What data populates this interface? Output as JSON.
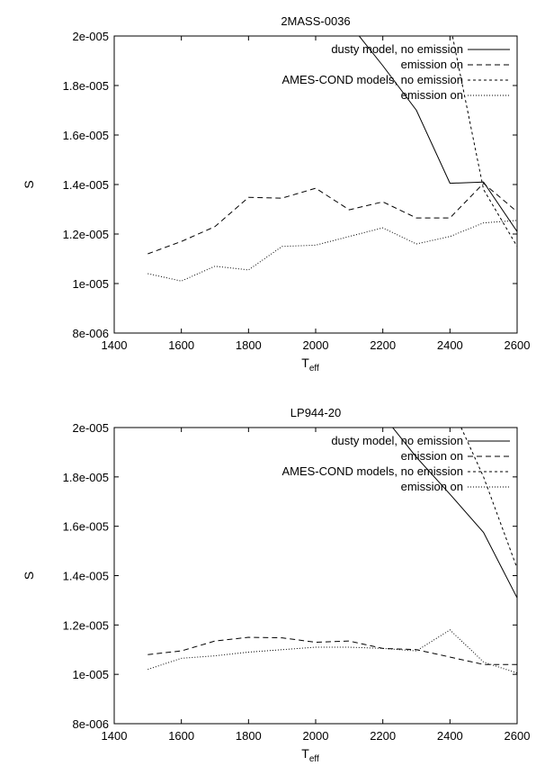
{
  "chart_data": [
    {
      "type": "line",
      "title": "2MASS-0036",
      "xlabel": "T",
      "xlabel_sub": "eff",
      "ylabel": "S",
      "xlim": [
        1400,
        2600
      ],
      "ylim": [
        8e-06,
        2e-05
      ],
      "x_ticks": [
        "1400",
        "1600",
        "1800",
        "2000",
        "2200",
        "2400",
        "2600"
      ],
      "y_ticks": [
        "8e-006",
        "1e-005",
        "1.2e-005",
        "1.4e-005",
        "1.6e-005",
        "1.8e-005",
        "2e-005"
      ],
      "grid": false,
      "legend_position": "top-right",
      "x": [
        1500,
        1600,
        1700,
        1800,
        1900,
        2000,
        2100,
        2200,
        2300,
        2400,
        2500,
        2600
      ],
      "series": [
        {
          "name": "dusty model, no emission",
          "style": "solid",
          "values": [
            null,
            null,
            null,
            null,
            null,
            2.16e-05,
            2.05e-05,
            1.88e-05,
            1.7e-05,
            1.405e-05,
            1.41e-05,
            1.21e-05
          ]
        },
        {
          "name": "emission on",
          "style": "dashed",
          "values": [
            1.12e-05,
            1.17e-05,
            1.23e-05,
            1.348e-05,
            1.345e-05,
            1.385e-05,
            1.298e-05,
            1.33e-05,
            1.265e-05,
            1.265e-05,
            1.405e-05,
            1.29e-05
          ]
        },
        {
          "name": "AMES-COND models, no emission",
          "style": "short-dashed",
          "values": [
            null,
            null,
            null,
            null,
            null,
            null,
            null,
            null,
            2.5e-05,
            2.05e-05,
            1.38e-05,
            1.15e-05
          ]
        },
        {
          "name": "emission on",
          "style": "dotted",
          "values": [
            1.04e-05,
            1.01e-05,
            1.07e-05,
            1.055e-05,
            1.15e-05,
            1.155e-05,
            1.19e-05,
            1.225e-05,
            1.16e-05,
            1.19e-05,
            1.245e-05,
            1.255e-05
          ]
        }
      ]
    },
    {
      "type": "line",
      "title": "LP944-20",
      "xlabel": "T",
      "xlabel_sub": "eff",
      "ylabel": "S",
      "xlim": [
        1400,
        2600
      ],
      "ylim": [
        8e-06,
        2e-05
      ],
      "x_ticks": [
        "1400",
        "1600",
        "1800",
        "2000",
        "2200",
        "2400",
        "2600"
      ],
      "y_ticks": [
        "8e-006",
        "1e-005",
        "1.2e-005",
        "1.4e-005",
        "1.6e-005",
        "1.8e-005",
        "2e-005"
      ],
      "grid": false,
      "legend_position": "top-right",
      "x": [
        1500,
        1600,
        1700,
        1800,
        1900,
        2000,
        2100,
        2200,
        2300,
        2400,
        2500,
        2600
      ],
      "series": [
        {
          "name": "dusty model, no emission",
          "style": "solid",
          "values": [
            null,
            null,
            null,
            null,
            null,
            null,
            null,
            2.05e-05,
            1.88e-05,
            1.73e-05,
            1.575e-05,
            1.31e-05
          ]
        },
        {
          "name": "emission on",
          "style": "dashed",
          "values": [
            1.08e-05,
            1.095e-05,
            1.135e-05,
            1.15e-05,
            1.148e-05,
            1.13e-05,
            1.135e-05,
            1.105e-05,
            1.1e-05,
            1.07e-05,
            1.04e-05,
            1.04e-05
          ]
        },
        {
          "name": "AMES-COND models, no emission",
          "style": "short-dashed",
          "values": [
            null,
            null,
            null,
            null,
            null,
            null,
            null,
            null,
            null,
            2.1e-05,
            1.8e-05,
            1.43e-05
          ]
        },
        {
          "name": "emission on",
          "style": "dotted",
          "values": [
            1.02e-05,
            1.065e-05,
            1.075e-05,
            1.09e-05,
            1.1e-05,
            1.11e-05,
            1.11e-05,
            1.105e-05,
            1.095e-05,
            1.18e-05,
            1.05e-05,
            1.005e-05
          ]
        }
      ]
    }
  ]
}
